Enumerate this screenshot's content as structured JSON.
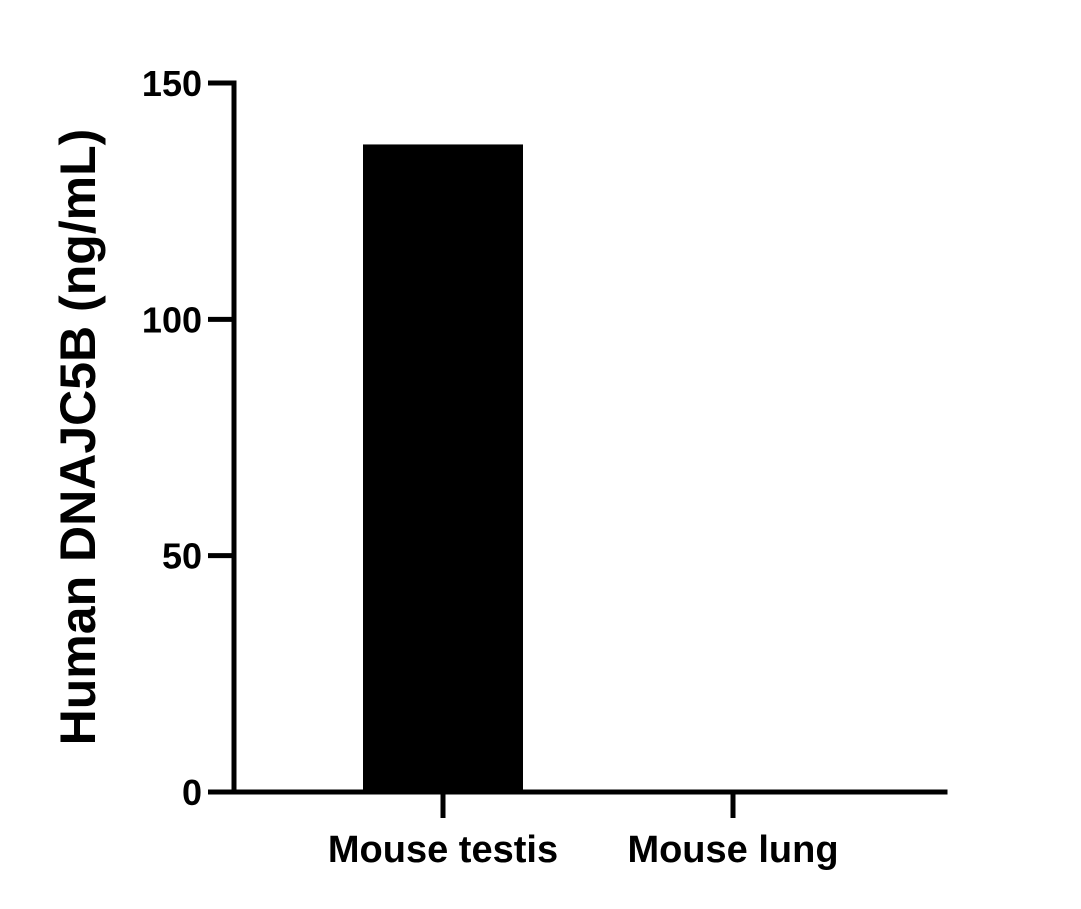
{
  "chart_data": {
    "type": "bar",
    "title": "",
    "xlabel": "",
    "ylabel": "Human DNAJC5B (ng/mL)",
    "categories": [
      "Mouse testis",
      "Mouse lung"
    ],
    "values": [
      137,
      0
    ],
    "ylim": [
      0,
      150
    ],
    "yticks": [
      0,
      50,
      100,
      150
    ],
    "ytick_labels": [
      "0",
      "50",
      "100",
      "150"
    ],
    "grid": false,
    "legend": "none",
    "bar_color": "#000000",
    "axis_color": "#000000"
  }
}
